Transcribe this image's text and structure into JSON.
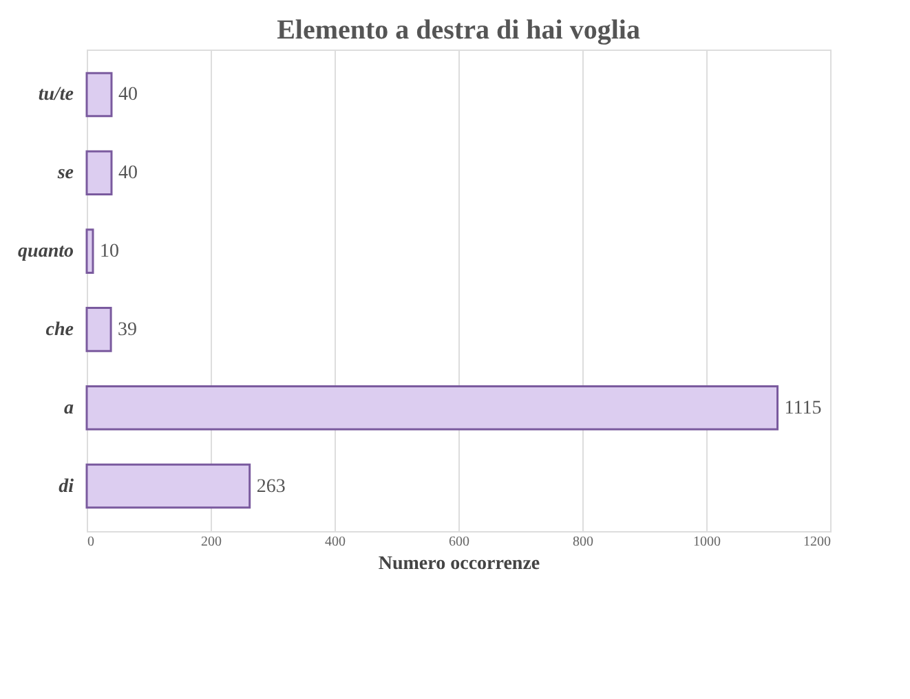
{
  "chart_data": {
    "type": "bar",
    "orientation": "horizontal",
    "title": "Elemento  a destra  di hai voglia",
    "xlabel": "Numero occorrenze",
    "categories": [
      "tu/te",
      "se",
      "quanto",
      "che",
      "a",
      "di"
    ],
    "values": [
      40,
      40,
      10,
      39,
      1115,
      263
    ],
    "color": "#dccdf0",
    "xlim": [
      0,
      1200
    ],
    "xticks": [
      0,
      200,
      400,
      600,
      800,
      1000,
      1200
    ],
    "grid": "x",
    "data_labels": true
  }
}
